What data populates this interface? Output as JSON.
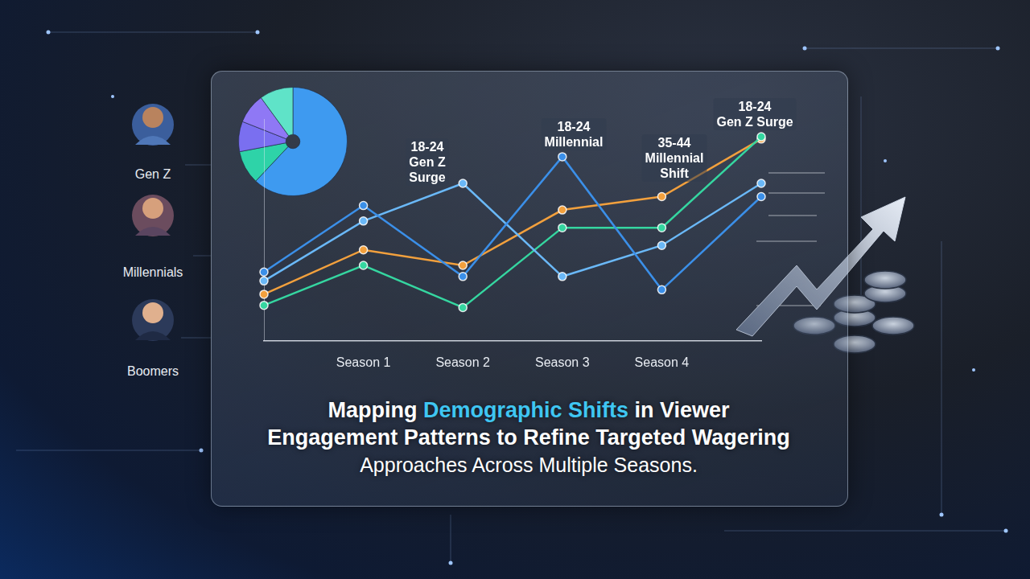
{
  "chart_data": [
    {
      "type": "line",
      "categories": [
        null,
        "Season 1",
        "Season 2",
        "Season 3",
        "Season 4",
        null
      ],
      "series": [
        {
          "color": "#3b8fe8",
          "values": [
            31,
            61,
            29,
            83,
            23,
            65
          ]
        },
        {
          "color": "#6ab8f7",
          "values": [
            27,
            54,
            71,
            29,
            43,
            71
          ]
        },
        {
          "color": "#35d6a0",
          "values": [
            16,
            34,
            15,
            51,
            51,
            92
          ]
        },
        {
          "color": "#f2a03d",
          "values": [
            21,
            41,
            34,
            59,
            65,
            91
          ]
        }
      ],
      "ylim": [
        0,
        100
      ],
      "tick_labels": "x",
      "grid": false,
      "marker": "circle",
      "annotations": [
        [
          "18-24",
          "Gen Z",
          "Surge"
        ],
        [
          "18-24",
          "Millennial"
        ],
        [
          "35-44",
          "Millennial",
          "Shift"
        ],
        [
          "18-24",
          "Gen Z Surge"
        ]
      ]
    },
    {
      "type": "pie",
      "values": [
        62,
        10,
        9,
        9,
        10
      ],
      "colors": [
        "#3e9af0",
        "#2ed3a8",
        "#7a6ff0",
        "#8f78f5",
        "#5fe3c8"
      ]
    }
  ],
  "personas": [
    "Gen Z",
    "Millennials",
    "Boomers"
  ],
  "headline": {
    "lines": [
      "Mapping Demographic Shifts in Viewer",
      "Engagement Patterns to Refine Targeted Wagering",
      "Approaches Across Multiple Seasons."
    ],
    "highlight": "Demographic Shifts"
  }
}
